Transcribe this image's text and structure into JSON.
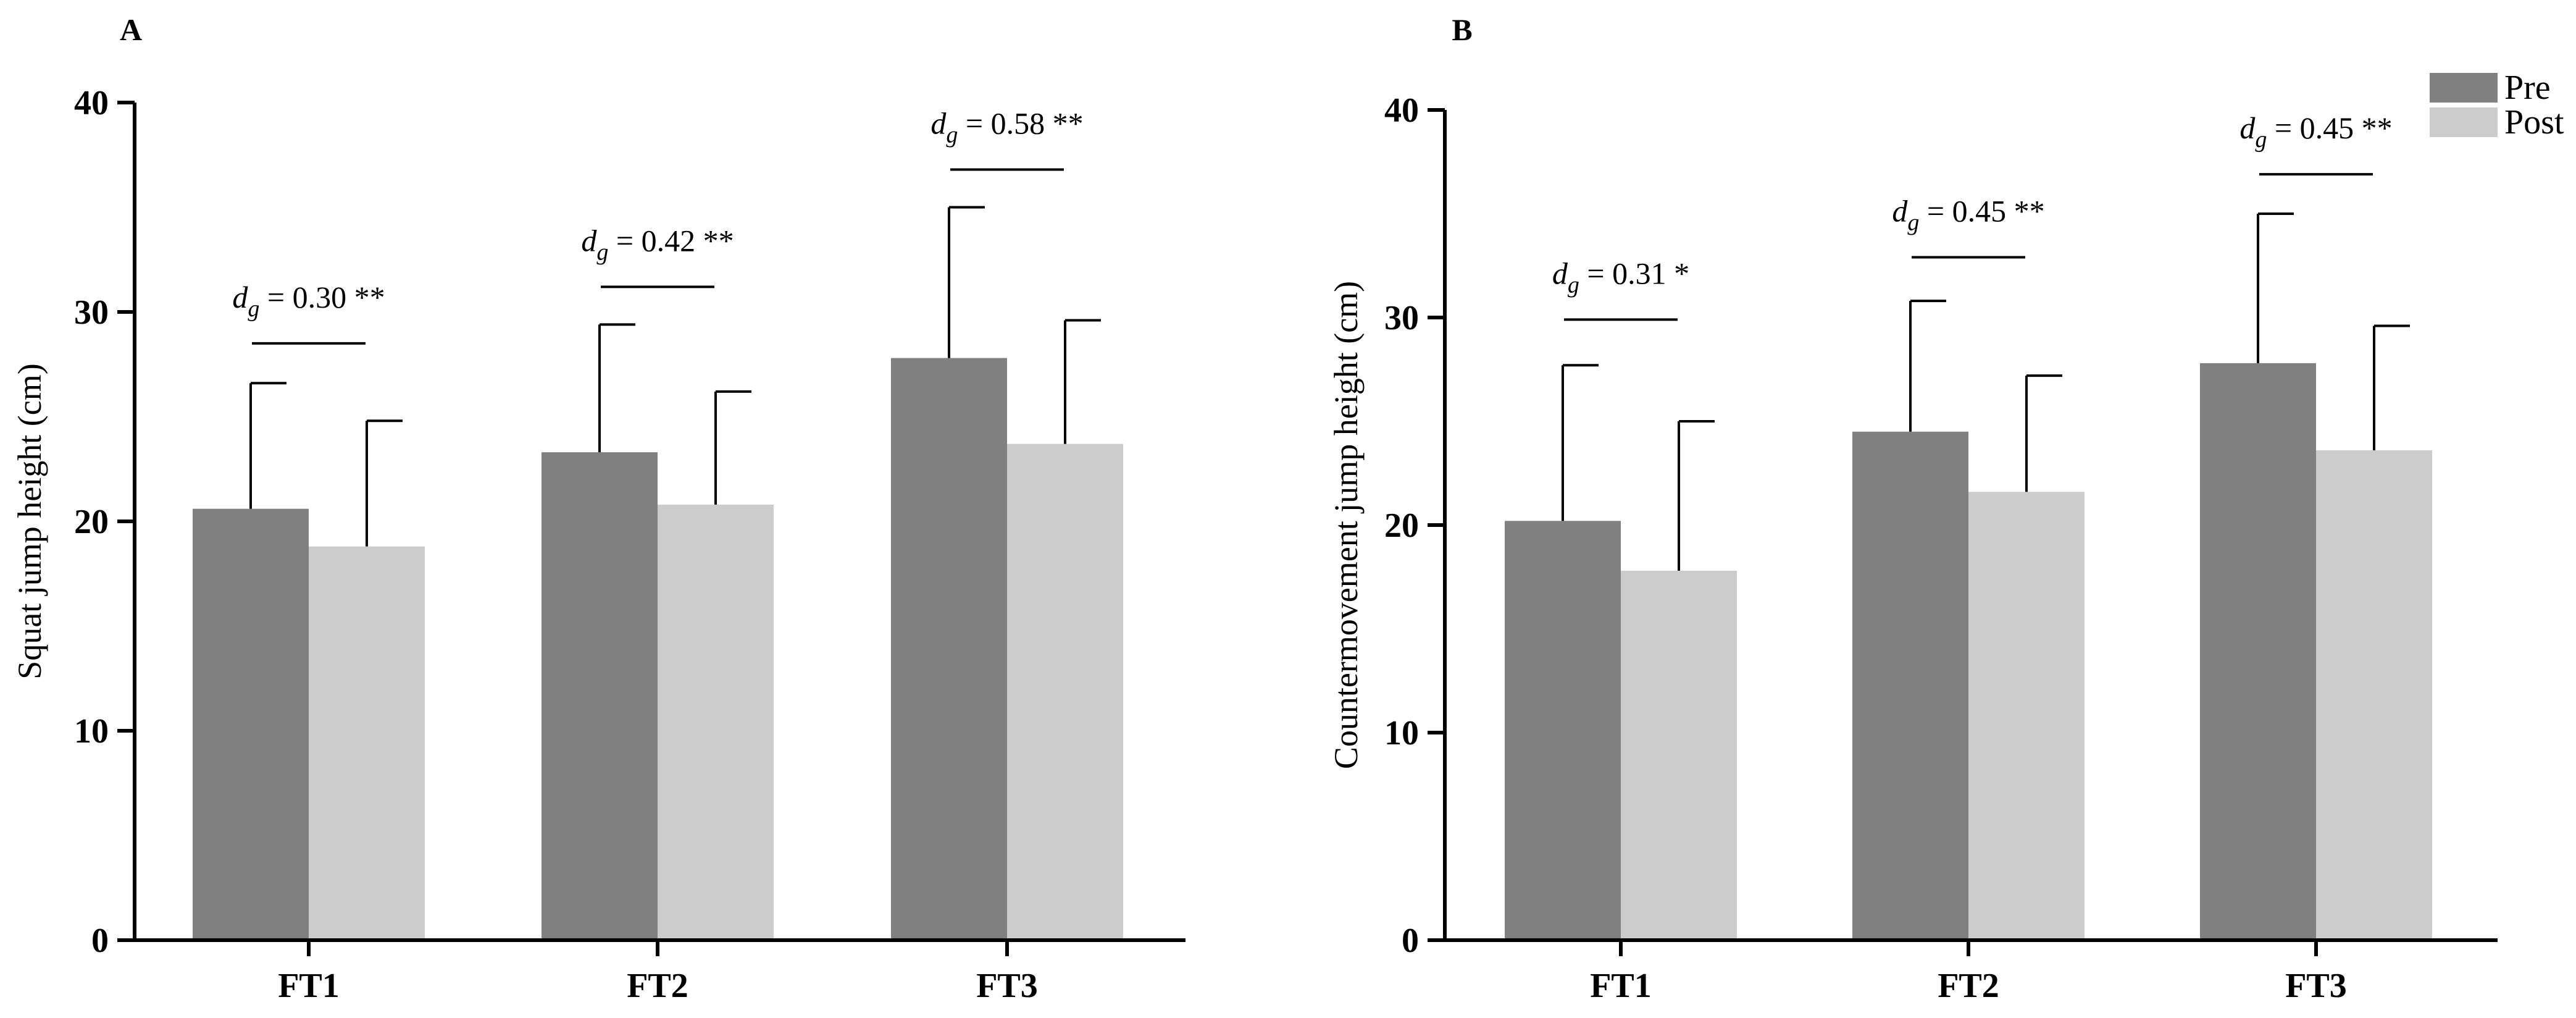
{
  "chart_data": [
    {
      "type": "bar",
      "panel_label": "A",
      "title": "",
      "xlabel": "",
      "ylabel": "Squat jump height (cm)",
      "ylim": [
        0,
        40
      ],
      "yticks": [
        "0",
        "10",
        "20",
        "30",
        "40"
      ],
      "categories": [
        "FT1",
        "FT2",
        "FT3"
      ],
      "series": [
        {
          "name": "Pre",
          "color": "#808080",
          "values": [
            20.6,
            23.3,
            27.8
          ],
          "sd": [
            6.0,
            6.1,
            7.2
          ]
        },
        {
          "name": "Post",
          "color": "#cccccc",
          "values": [
            18.8,
            20.8,
            23.7
          ],
          "sd": [
            6.0,
            5.4,
            5.9
          ]
        }
      ],
      "annotations": [
        {
          "symbol": "d",
          "subscript": "g",
          "text": " = 0.30 **",
          "category": "FT1",
          "y": 28.5
        },
        {
          "symbol": "d",
          "subscript": "g",
          "text": " = 0.42 **",
          "category": "FT2",
          "y": 31.2
        },
        {
          "symbol": "d",
          "subscript": "g",
          "text": " = 0.58 **",
          "category": "FT3",
          "y": 36.8
        }
      ]
    },
    {
      "type": "bar",
      "panel_label": "B",
      "title": "",
      "xlabel": "",
      "ylabel": "Countermovement jump height (cm)",
      "ylim": [
        0,
        40
      ],
      "yticks": [
        "0",
        "10",
        "20",
        "30",
        "40"
      ],
      "categories": [
        "FT1",
        "FT2",
        "FT3"
      ],
      "series": [
        {
          "name": "Pre",
          "color": "#808080",
          "values": [
            20.2,
            24.5,
            27.8
          ],
          "sd": [
            7.5,
            6.3,
            7.2
          ]
        },
        {
          "name": "Post",
          "color": "#cccccc",
          "values": [
            17.8,
            21.6,
            23.6
          ],
          "sd": [
            7.2,
            5.6,
            6.0
          ]
        }
      ],
      "annotations": [
        {
          "symbol": "d",
          "subscript": "g",
          "text": " = 0.31 *",
          "category": "FT1",
          "y": 29.9
        },
        {
          "symbol": "d",
          "subscript": "g",
          "text": " = 0.45 **",
          "category": "FT2",
          "y": 32.9
        },
        {
          "symbol": "d",
          "subscript": "g",
          "text": " = 0.45 **",
          "category": "FT3",
          "y": 36.9
        }
      ],
      "legend": {
        "position": "top-right",
        "entries": [
          "Pre",
          "Post"
        ]
      }
    }
  ]
}
